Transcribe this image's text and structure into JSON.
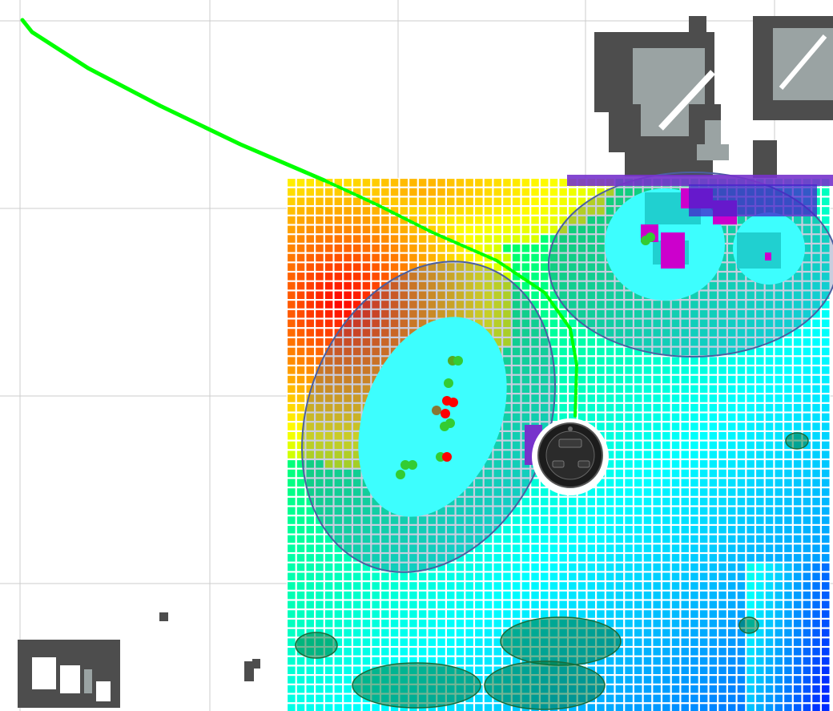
{
  "view": {
    "type": "robot navigation costmap (3D view)",
    "background": "#ffffff"
  },
  "palette": {
    "grid_line": "#cccccc",
    "wall": "#4d4d4d",
    "unknown": "#9aa3a3",
    "path": "#00ff00",
    "cell_outline": "#ffffff",
    "inflation_outline": "#4b5fa0",
    "lethal_cyan": "#3dfefe",
    "obstacle_magenta": "#cc00cc",
    "footprint_purple": "#7733cc",
    "marker_green": "#33cc33",
    "marker_red": "#ff0000"
  },
  "icons": {
    "robot": "turtlebot-robot-icon"
  }
}
